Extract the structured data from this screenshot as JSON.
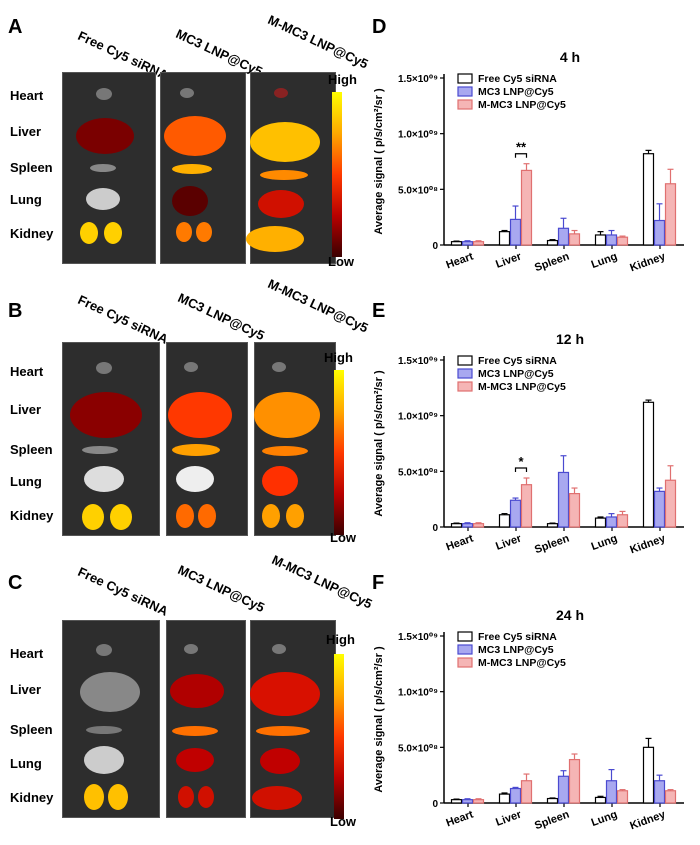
{
  "panels": {
    "letters": [
      "A",
      "B",
      "C",
      "D",
      "E",
      "F"
    ],
    "image_columns": [
      "Free Cy5 siRNA",
      "MC3 LNP@Cy5",
      "M-MC3 LNP@Cy5"
    ],
    "organs": [
      "Heart",
      "Liver",
      "Spleen",
      "Lung",
      "Kidney"
    ],
    "scale_high": "High",
    "scale_low": "Low"
  },
  "chart_data": [
    {
      "type": "bar",
      "title": "4 h",
      "ylabel": "Average signal ( p/s/cm²/sr )",
      "categories": [
        "Heart",
        "Liver",
        "Spleen",
        "Lung",
        "Kidney"
      ],
      "ylim": [
        0,
        1500000000.0
      ],
      "yticks": [
        0,
        500000000.0,
        1000000000.0,
        1500000000.0
      ],
      "ytick_labels": [
        "0",
        "5.0×10⁰⁸",
        "1.0×10⁰⁹",
        "1.5×10⁰⁹"
      ],
      "series": [
        {
          "name": "Free Cy5 siRNA",
          "color": "#ffffff",
          "edge": "#000000",
          "values": [
            30000000.0,
            120000000.0,
            40000000.0,
            90000000.0,
            820000000.0
          ],
          "errors": [
            5000000.0,
            10000000.0,
            8000000.0,
            30000000.0,
            30000000.0
          ]
        },
        {
          "name": "MC3 LNP@Cy5",
          "color": "#a8a8f0",
          "edge": "#4a4ad0",
          "values": [
            30000000.0,
            230000000.0,
            150000000.0,
            90000000.0,
            220000000.0
          ],
          "errors": [
            8000000.0,
            120000000.0,
            90000000.0,
            40000000.0,
            150000000.0
          ]
        },
        {
          "name": "M-MC3 LNP@Cy5",
          "color": "#f5b5b5",
          "edge": "#e07070",
          "values": [
            30000000.0,
            670000000.0,
            100000000.0,
            70000000.0,
            550000000.0
          ],
          "errors": [
            8000000.0,
            60000000.0,
            30000000.0,
            10000000.0,
            130000000.0
          ]
        }
      ],
      "significance": {
        "category": "Liver",
        "label": "**",
        "from_series": 1,
        "to_series": 2
      }
    },
    {
      "type": "bar",
      "title": "12 h",
      "ylabel": "Average signal ( p/s/cm²/sr )",
      "categories": [
        "Heart",
        "Liver",
        "Spleen",
        "Lung",
        "Kidney"
      ],
      "ylim": [
        0,
        1500000000.0
      ],
      "yticks": [
        0,
        500000000.0,
        1000000000.0,
        1500000000.0
      ],
      "ytick_labels": [
        "0",
        "5.0×10⁰⁸",
        "1.0×10⁰⁹",
        "1.5×10⁰⁹"
      ],
      "series": [
        {
          "name": "Free Cy5 siRNA",
          "color": "#ffffff",
          "edge": "#000000",
          "values": [
            30000000.0,
            110000000.0,
            30000000.0,
            80000000.0,
            1120000000.0
          ],
          "errors": [
            5000000.0,
            10000000.0,
            5000000.0,
            10000000.0,
            20000000.0
          ]
        },
        {
          "name": "MC3 LNP@Cy5",
          "color": "#a8a8f0",
          "edge": "#4a4ad0",
          "values": [
            30000000.0,
            240000000.0,
            490000000.0,
            90000000.0,
            320000000.0
          ],
          "errors": [
            8000000.0,
            20000000.0,
            150000000.0,
            30000000.0,
            30000000.0
          ]
        },
        {
          "name": "M-MC3 LNP@Cy5",
          "color": "#f5b5b5",
          "edge": "#e07070",
          "values": [
            30000000.0,
            380000000.0,
            300000000.0,
            110000000.0,
            420000000.0
          ],
          "errors": [
            8000000.0,
            60000000.0,
            50000000.0,
            30000000.0,
            130000000.0
          ]
        }
      ],
      "significance": {
        "category": "Liver",
        "label": "*",
        "from_series": 1,
        "to_series": 2
      }
    },
    {
      "type": "bar",
      "title": "24 h",
      "ylabel": "Average signal ( p/s/cm²/sr )",
      "categories": [
        "Heart",
        "Liver",
        "Spleen",
        "Lung",
        "Kidney"
      ],
      "ylim": [
        0,
        1500000000.0
      ],
      "yticks": [
        0,
        500000000.0,
        1000000000.0,
        1500000000.0
      ],
      "ytick_labels": [
        "0",
        "5.0×10⁰⁸",
        "1.0×10⁰⁹",
        "1.5×10⁰⁹"
      ],
      "series": [
        {
          "name": "Free Cy5 siRNA",
          "color": "#ffffff",
          "edge": "#000000",
          "values": [
            30000000.0,
            80000000.0,
            40000000.0,
            50000000.0,
            500000000.0
          ],
          "errors": [
            5000000.0,
            10000000.0,
            5000000.0,
            10000000.0,
            80000000.0
          ]
        },
        {
          "name": "MC3 LNP@Cy5",
          "color": "#a8a8f0",
          "edge": "#4a4ad0",
          "values": [
            30000000.0,
            130000000.0,
            240000000.0,
            200000000.0,
            200000000.0
          ],
          "errors": [
            8000000.0,
            10000000.0,
            50000000.0,
            100000000.0,
            50000000.0
          ]
        },
        {
          "name": "M-MC3 LNP@Cy5",
          "color": "#f5b5b5",
          "edge": "#e07070",
          "values": [
            30000000.0,
            200000000.0,
            390000000.0,
            110000000.0,
            110000000.0
          ],
          "errors": [
            8000000.0,
            60000000.0,
            50000000.0,
            10000000.0,
            10000000.0
          ]
        }
      ]
    }
  ]
}
